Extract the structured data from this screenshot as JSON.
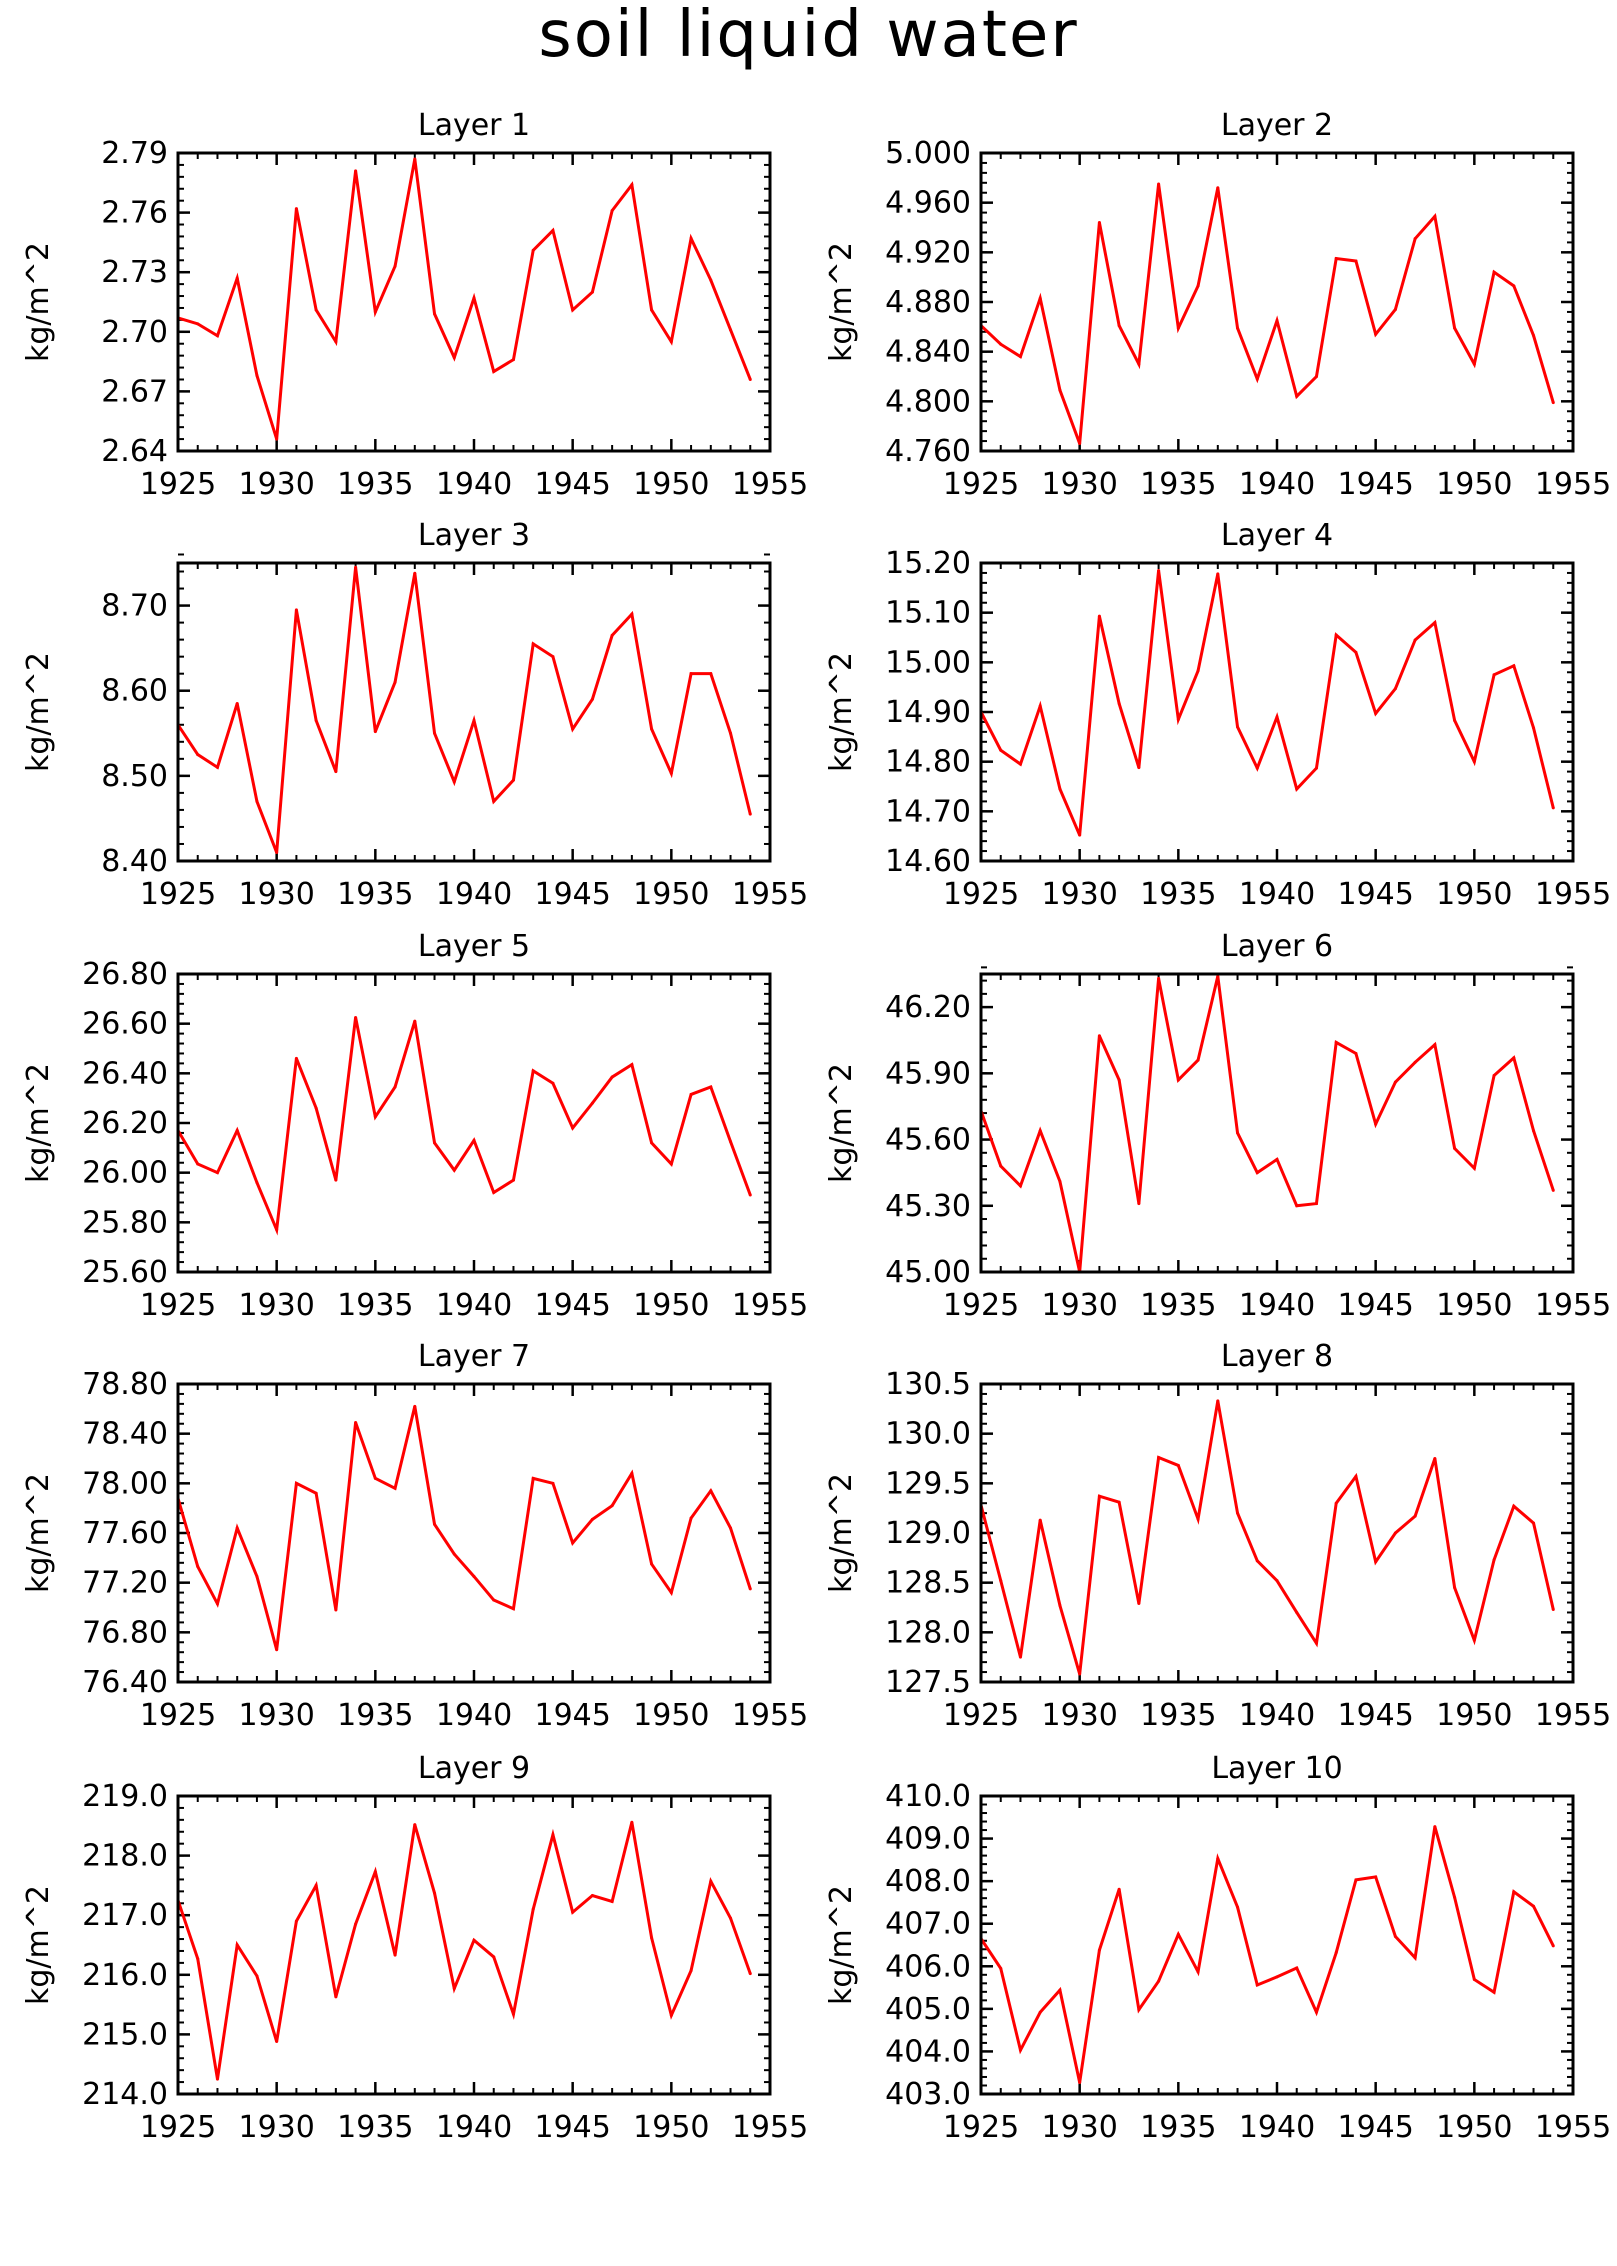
{
  "title": "soil liquid water",
  "footer": "",
  "line_color": "#ff0000",
  "chart_data": [
    {
      "type": "line",
      "title": "Layer 1",
      "ylabel": "kg/m^2",
      "xlim": [
        1925,
        1955
      ],
      "ylim": [
        2.64,
        2.79
      ],
      "x": [
        1925,
        1926,
        1927,
        1928,
        1929,
        1930,
        1931,
        1932,
        1933,
        1934,
        1935,
        1936,
        1937,
        1938,
        1939,
        1940,
        1941,
        1942,
        1943,
        1944,
        1945,
        1946,
        1947,
        1948,
        1949,
        1950,
        1951,
        1952,
        1953,
        1954
      ],
      "xticks": [
        "1925",
        "1930",
        "1935",
        "1940",
        "1945",
        "1950",
        "1955"
      ],
      "yticks": [
        "2.64",
        "2.67",
        "2.70",
        "2.73",
        "2.76",
        "2.79"
      ],
      "series": [
        {
          "values": [
            2.707,
            2.704,
            2.698,
            2.727,
            2.678,
            2.646,
            2.762,
            2.711,
            2.695,
            2.781,
            2.71,
            2.733,
            2.787,
            2.709,
            2.687,
            2.717,
            2.68,
            2.686,
            2.741,
            2.751,
            2.711,
            2.72,
            2.761,
            2.774,
            2.711,
            2.695,
            2.747,
            2.726,
            2.701,
            2.676
          ]
        }
      ]
    },
    {
      "type": "line",
      "title": "Layer 2",
      "ylabel": "kg/m^2",
      "xlim": [
        1925,
        1955
      ],
      "ylim": [
        4.76,
        5.0
      ],
      "x": [
        1925,
        1926,
        1927,
        1928,
        1929,
        1930,
        1931,
        1932,
        1933,
        1934,
        1935,
        1936,
        1937,
        1938,
        1939,
        1940,
        1941,
        1942,
        1943,
        1944,
        1945,
        1946,
        1947,
        1948,
        1949,
        1950,
        1951,
        1952,
        1953,
        1954
      ],
      "xticks": [
        "1925",
        "1930",
        "1935",
        "1940",
        "1945",
        "1950",
        "1955"
      ],
      "yticks": [
        "4.760",
        "4.800",
        "4.840",
        "4.880",
        "4.920",
        "4.960",
        "5.000"
      ],
      "series": [
        {
          "values": [
            4.861,
            4.846,
            4.836,
            4.883,
            4.809,
            4.766,
            4.944,
            4.861,
            4.83,
            4.975,
            4.859,
            4.893,
            4.972,
            4.859,
            4.818,
            4.865,
            4.804,
            4.82,
            4.915,
            4.913,
            4.854,
            4.874,
            4.931,
            4.949,
            4.859,
            4.83,
            4.904,
            4.893,
            4.853,
            4.799
          ]
        }
      ]
    },
    {
      "type": "line",
      "title": "Layer 3",
      "ylabel": "kg/m^2",
      "xlim": [
        1925,
        1955
      ],
      "ylim": [
        8.4,
        8.75
      ],
      "x": [
        1925,
        1926,
        1927,
        1928,
        1929,
        1930,
        1931,
        1932,
        1933,
        1934,
        1935,
        1936,
        1937,
        1938,
        1939,
        1940,
        1941,
        1942,
        1943,
        1944,
        1945,
        1946,
        1947,
        1948,
        1949,
        1950,
        1951,
        1952,
        1953,
        1954
      ],
      "xticks": [
        "1925",
        "1930",
        "1935",
        "1940",
        "1945",
        "1950",
        "1955"
      ],
      "yticks": [
        "8.40",
        "8.50",
        "8.60",
        "8.70"
      ],
      "series": [
        {
          "values": [
            8.56,
            8.525,
            8.51,
            8.585,
            8.47,
            8.41,
            8.695,
            8.565,
            8.505,
            8.745,
            8.552,
            8.61,
            8.738,
            8.55,
            8.493,
            8.565,
            8.47,
            8.495,
            8.655,
            8.64,
            8.555,
            8.59,
            8.665,
            8.69,
            8.555,
            8.503,
            8.62,
            8.62,
            8.55,
            8.455
          ]
        }
      ]
    },
    {
      "type": "line",
      "title": "Layer 4",
      "ylabel": "kg/m^2",
      "xlim": [
        1925,
        1955
      ],
      "ylim": [
        14.6,
        15.2
      ],
      "x": [
        1925,
        1926,
        1927,
        1928,
        1929,
        1930,
        1931,
        1932,
        1933,
        1934,
        1935,
        1936,
        1937,
        1938,
        1939,
        1940,
        1941,
        1942,
        1943,
        1944,
        1945,
        1946,
        1947,
        1948,
        1949,
        1950,
        1951,
        1952,
        1953,
        1954
      ],
      "xticks": [
        "1925",
        "1930",
        "1935",
        "1940",
        "1945",
        "1950",
        "1955"
      ],
      "yticks": [
        "14.60",
        "14.70",
        "14.80",
        "14.90",
        "15.00",
        "15.10",
        "15.20"
      ],
      "series": [
        {
          "values": [
            14.9,
            14.823,
            14.795,
            14.912,
            14.745,
            14.652,
            15.093,
            14.917,
            14.788,
            15.185,
            14.885,
            14.983,
            15.178,
            14.87,
            14.787,
            14.89,
            14.745,
            14.787,
            15.055,
            15.02,
            14.897,
            14.947,
            15.045,
            15.08,
            14.883,
            14.8,
            14.975,
            14.993,
            14.868,
            14.707
          ]
        }
      ]
    },
    {
      "type": "line",
      "title": "Layer 5",
      "ylabel": "kg/m^2",
      "xlim": [
        1925,
        1955
      ],
      "ylim": [
        25.6,
        26.8
      ],
      "x": [
        1925,
        1926,
        1927,
        1928,
        1929,
        1930,
        1931,
        1932,
        1933,
        1934,
        1935,
        1936,
        1937,
        1938,
        1939,
        1940,
        1941,
        1942,
        1943,
        1944,
        1945,
        1946,
        1947,
        1948,
        1949,
        1950,
        1951,
        1952,
        1953,
        1954
      ],
      "xticks": [
        "1925",
        "1930",
        "1935",
        "1940",
        "1945",
        "1950",
        "1955"
      ],
      "yticks": [
        "25.60",
        "25.80",
        "26.00",
        "26.20",
        "26.40",
        "26.60",
        "26.80"
      ],
      "series": [
        {
          "values": [
            26.17,
            26.035,
            26.0,
            26.17,
            25.96,
            25.77,
            26.46,
            26.26,
            25.97,
            26.625,
            26.225,
            26.345,
            26.61,
            26.12,
            26.01,
            26.13,
            25.92,
            25.97,
            26.41,
            26.36,
            26.18,
            26.28,
            26.385,
            26.435,
            26.12,
            26.035,
            26.315,
            26.345,
            26.125,
            25.91
          ]
        }
      ]
    },
    {
      "type": "line",
      "title": "Layer 6",
      "ylabel": "kg/m^2",
      "xlim": [
        1925,
        1955
      ],
      "ylim": [
        45.0,
        46.35
      ],
      "x": [
        1925,
        1926,
        1927,
        1928,
        1929,
        1930,
        1931,
        1932,
        1933,
        1934,
        1935,
        1936,
        1937,
        1938,
        1939,
        1940,
        1941,
        1942,
        1943,
        1944,
        1945,
        1946,
        1947,
        1948,
        1949,
        1950,
        1951,
        1952,
        1953,
        1954
      ],
      "xticks": [
        "1925",
        "1930",
        "1935",
        "1940",
        "1945",
        "1950",
        "1955"
      ],
      "yticks": [
        "45.00",
        "45.30",
        "45.60",
        "45.90",
        "46.20"
      ],
      "series": [
        {
          "values": [
            45.73,
            45.48,
            45.39,
            45.64,
            45.41,
            45.0,
            46.07,
            45.87,
            45.31,
            46.33,
            45.87,
            45.96,
            46.34,
            45.63,
            45.45,
            45.51,
            45.3,
            45.31,
            46.04,
            45.99,
            45.67,
            45.86,
            45.95,
            46.03,
            45.56,
            45.47,
            45.89,
            45.97,
            45.64,
            45.37
          ]
        }
      ]
    },
    {
      "type": "line",
      "title": "Layer 7",
      "ylabel": "kg/m^2",
      "xlim": [
        1925,
        1955
      ],
      "ylim": [
        76.4,
        78.8
      ],
      "x": [
        1925,
        1926,
        1927,
        1928,
        1929,
        1930,
        1931,
        1932,
        1933,
        1934,
        1935,
        1936,
        1937,
        1938,
        1939,
        1940,
        1941,
        1942,
        1943,
        1944,
        1945,
        1946,
        1947,
        1948,
        1949,
        1950,
        1951,
        1952,
        1953,
        1954
      ],
      "xticks": [
        "1925",
        "1930",
        "1935",
        "1940",
        "1945",
        "1950",
        "1955"
      ],
      "yticks": [
        "76.40",
        "76.80",
        "77.20",
        "77.60",
        "78.00",
        "78.40",
        "78.80"
      ],
      "series": [
        {
          "values": [
            77.88,
            77.33,
            77.03,
            77.64,
            77.25,
            76.66,
            78.0,
            77.92,
            76.98,
            78.49,
            78.04,
            77.96,
            78.62,
            77.67,
            77.43,
            77.25,
            77.06,
            76.99,
            78.04,
            78.0,
            77.52,
            77.71,
            77.82,
            78.08,
            77.35,
            77.12,
            77.72,
            77.94,
            77.64,
            77.15
          ]
        }
      ]
    },
    {
      "type": "line",
      "title": "Layer 8",
      "ylabel": "kg/m^2",
      "xlim": [
        1925,
        1955
      ],
      "ylim": [
        127.5,
        130.5
      ],
      "x": [
        1925,
        1926,
        1927,
        1928,
        1929,
        1930,
        1931,
        1932,
        1933,
        1934,
        1935,
        1936,
        1937,
        1938,
        1939,
        1940,
        1941,
        1942,
        1943,
        1944,
        1945,
        1946,
        1947,
        1948,
        1949,
        1950,
        1951,
        1952,
        1953,
        1954
      ],
      "xticks": [
        "1925",
        "1930",
        "1935",
        "1940",
        "1945",
        "1950",
        "1955"
      ],
      "yticks": [
        "127.5",
        "128.0",
        "128.5",
        "129.0",
        "129.5",
        "130.0",
        "130.5"
      ],
      "series": [
        {
          "values": [
            129.28,
            128.52,
            127.75,
            129.13,
            128.27,
            127.58,
            129.37,
            129.31,
            128.29,
            129.76,
            129.68,
            129.14,
            130.33,
            129.2,
            128.72,
            128.52,
            128.2,
            127.89,
            129.3,
            129.57,
            128.71,
            129.0,
            129.17,
            129.75,
            128.45,
            127.92,
            128.73,
            129.27,
            129.1,
            128.23
          ]
        }
      ]
    },
    {
      "type": "line",
      "title": "Layer 9",
      "ylabel": "kg/m^2",
      "xlim": [
        1925,
        1955
      ],
      "ylim": [
        214.0,
        219.0
      ],
      "x": [
        1925,
        1926,
        1927,
        1928,
        1929,
        1930,
        1931,
        1932,
        1933,
        1934,
        1935,
        1936,
        1937,
        1938,
        1939,
        1940,
        1941,
        1942,
        1943,
        1944,
        1945,
        1946,
        1947,
        1948,
        1949,
        1950,
        1951,
        1952,
        1953,
        1954
      ],
      "xticks": [
        "1925",
        "1930",
        "1935",
        "1940",
        "1945",
        "1950",
        "1955"
      ],
      "yticks": [
        "214.0",
        "215.0",
        "216.0",
        "217.0",
        "218.0",
        "219.0"
      ],
      "series": [
        {
          "values": [
            217.25,
            216.27,
            214.25,
            216.5,
            215.98,
            214.88,
            216.9,
            217.5,
            215.63,
            216.85,
            217.73,
            216.33,
            218.52,
            217.37,
            215.77,
            216.58,
            216.3,
            215.34,
            217.1,
            218.35,
            217.05,
            217.33,
            217.23,
            218.56,
            216.62,
            215.32,
            216.07,
            217.57,
            216.95,
            216.02
          ]
        }
      ]
    },
    {
      "type": "line",
      "title": "Layer 10",
      "ylabel": "kg/m^2",
      "xlim": [
        1925,
        1955
      ],
      "ylim": [
        403.0,
        410.0
      ],
      "x": [
        1925,
        1926,
        1927,
        1928,
        1929,
        1930,
        1931,
        1932,
        1933,
        1934,
        1935,
        1936,
        1937,
        1938,
        1939,
        1940,
        1941,
        1942,
        1943,
        1944,
        1945,
        1946,
        1947,
        1948,
        1949,
        1950,
        1951,
        1952,
        1953,
        1954
      ],
      "xticks": [
        "1925",
        "1930",
        "1935",
        "1940",
        "1945",
        "1950",
        "1955"
      ],
      "yticks": [
        "403.0",
        "404.0",
        "405.0",
        "406.0",
        "407.0",
        "408.0",
        "409.0",
        "410.0"
      ],
      "series": [
        {
          "values": [
            406.65,
            405.95,
            404.03,
            404.92,
            405.44,
            403.27,
            406.38,
            407.81,
            404.98,
            405.65,
            406.75,
            405.87,
            408.53,
            407.39,
            405.56,
            405.75,
            405.96,
            404.92,
            406.32,
            408.03,
            408.1,
            406.7,
            406.2,
            409.28,
            407.62,
            405.69,
            405.39,
            407.75,
            407.41,
            406.48
          ]
        }
      ]
    }
  ]
}
